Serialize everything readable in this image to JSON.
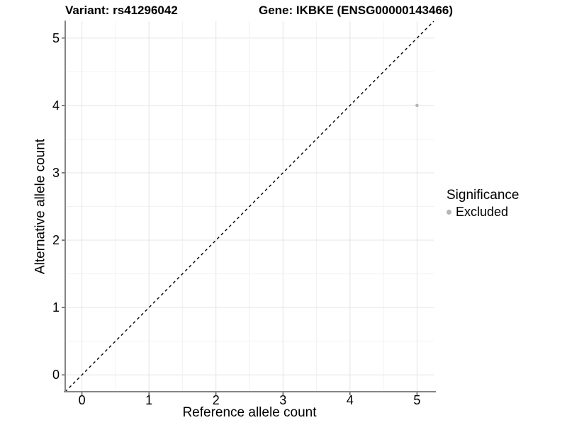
{
  "title": {
    "variant": "Variant: rs41296042",
    "gene": "Gene: IKBKE (ENSG00000143466)"
  },
  "chart_data": {
    "type": "scatter",
    "xlabel": "Reference allele count",
    "ylabel": "Alternative allele count",
    "xlim": [
      -0.25,
      5.25
    ],
    "ylim": [
      -0.25,
      5.25
    ],
    "x_ticks": [
      0,
      1,
      2,
      3,
      4,
      5
    ],
    "y_ticks": [
      0,
      1,
      2,
      3,
      4,
      5
    ],
    "grid": "major+minor",
    "points": [
      {
        "x": 5,
        "y": 4,
        "series": "Excluded"
      }
    ],
    "reference_line": {
      "slope": 1,
      "intercept": 0,
      "style": "dashed"
    },
    "legend": {
      "title": "Significance",
      "position": "right",
      "items": [
        {
          "label": "Excluded",
          "color": "#b5b5b5"
        }
      ]
    }
  },
  "colors": {
    "background": "#ffffff",
    "point": "#b5b5b5",
    "grid_major": "#e4e4e4",
    "grid_minor": "#f2f2f2",
    "axis_line": "#858585",
    "tick_mark": "#333333",
    "text": "#000000",
    "reference_line": "#000000"
  }
}
